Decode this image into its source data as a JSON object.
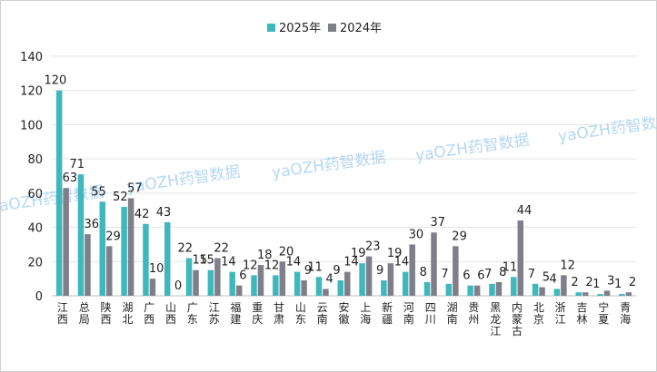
{
  "chart_data": {
    "type": "bar",
    "title": "",
    "xlabel": "",
    "ylabel": "",
    "ylim": [
      0,
      140
    ],
    "yticks": [
      0,
      20,
      40,
      60,
      80,
      100,
      120,
      140
    ],
    "grid": true,
    "legend_position": "top",
    "categories": [
      "江西",
      "总局",
      "陕西",
      "湖北",
      "广西",
      "山西",
      "广东",
      "江苏",
      "福建",
      "重庆",
      "甘肃",
      "山东",
      "云南",
      "安徽",
      "上海",
      "新疆",
      "河南",
      "四川",
      "湖南",
      "贵州",
      "黑龙江",
      "内蒙古",
      "北京",
      "浙江",
      "吉林",
      "宁夏",
      "青海"
    ],
    "series": [
      {
        "name": "2025年",
        "color": "#3fb8bd",
        "values": [
          120,
          71,
          55,
          52,
          42,
          43,
          22,
          15,
          14,
          12,
          12,
          14,
          11,
          9,
          19,
          9,
          14,
          8,
          7,
          6,
          7,
          11,
          7,
          4,
          2,
          1,
          1
        ]
      },
      {
        "name": "2024年",
        "color": "#7f7f8a",
        "values": [
          63,
          36,
          29,
          57,
          10,
          0,
          15,
          22,
          6,
          18,
          20,
          9,
          4,
          14,
          23,
          19,
          30,
          37,
          29,
          6,
          8,
          44,
          5,
          12,
          2,
          3,
          2
        ]
      }
    ]
  },
  "watermark": {
    "text": "yaOZH药智数据"
  }
}
